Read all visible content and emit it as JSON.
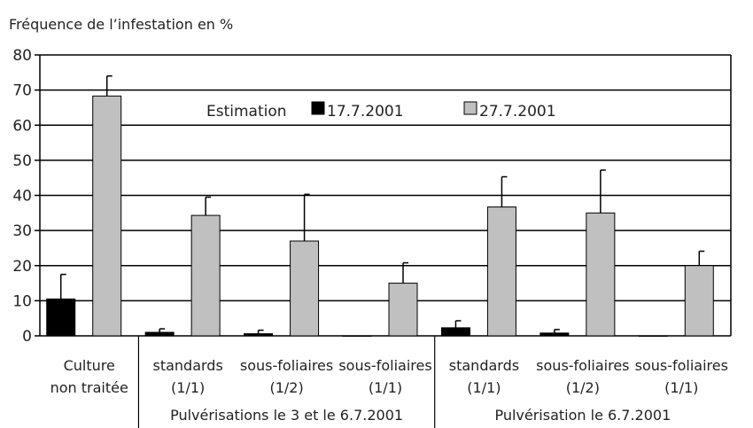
{
  "chart_data": {
    "type": "bar",
    "title": "Fréquence de l’infestation en %",
    "ylim": [
      0,
      80
    ],
    "yticks": [
      0,
      10,
      20,
      30,
      40,
      50,
      60,
      70,
      80
    ],
    "grid": true,
    "legend_title": "Estimation",
    "legend_position": "top-center",
    "categories": [
      {
        "line1": "Culture",
        "line2": "non traitée"
      },
      {
        "line1": "standards",
        "line2": "(1/1)"
      },
      {
        "line1": "sous-foliaires",
        "line2": "(1/2)"
      },
      {
        "line1": "sous-foliaires",
        "line2": "(1/1)"
      },
      {
        "line1": "standards",
        "line2": "(1/1)"
      },
      {
        "line1": "sous-foliaires",
        "line2": "(1/2)"
      },
      {
        "line1": "sous-foliaires",
        "line2": "(1/1)"
      }
    ],
    "groups": [
      {
        "label": "Pulvérisations le 3 et le 6.7.2001",
        "from": 1,
        "to": 3
      },
      {
        "label": "Pulvérisation le 6.7.2001",
        "from": 4,
        "to": 6
      }
    ],
    "series": [
      {
        "name": "17.7.2001",
        "color": "#000000",
        "values": [
          10.5,
          1.0,
          0.6,
          0.0,
          2.3,
          0.8,
          0.0
        ],
        "errors": [
          7.0,
          1.0,
          1.0,
          0.0,
          2.0,
          1.0,
          0.0
        ]
      },
      {
        "name": "27.7.2001",
        "color": "#c0c0c0",
        "values": [
          68.3,
          34.3,
          27.0,
          15.0,
          36.7,
          35.0,
          20.0
        ],
        "errors": [
          5.7,
          5.2,
          13.3,
          5.8,
          8.6,
          12.2,
          4.1
        ]
      }
    ]
  }
}
